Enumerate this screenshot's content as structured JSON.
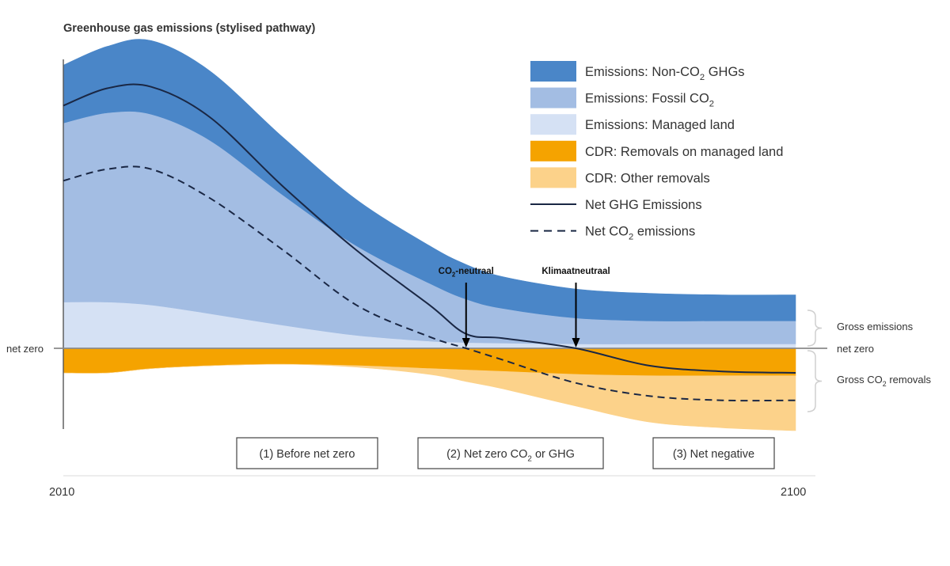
{
  "chart_data": {
    "type": "area",
    "title": "Greenhouse gas emissions (stylised pathway)",
    "x_start_label": "2010",
    "x_end_label": "2100",
    "zero_label": "net zero",
    "zero_label_right": "net zero",
    "colors": {
      "non_co2": "#4a86c8",
      "fossil_co2": "#a3bde3",
      "managed_land": "#d5e1f4",
      "cdr_managed": "#f5a300",
      "cdr_other": "#fcd28a",
      "net_line": "#1a2744",
      "axis": "#555555",
      "zero_line": "#8a8a8a",
      "text": "#333333"
    },
    "x": [
      0,
      0.06,
      0.12,
      0.2,
      0.3,
      0.4,
      0.5,
      0.55,
      0.6,
      0.7,
      0.8,
      0.9,
      1.0
    ],
    "series": [
      {
        "name": "Emissions: Managed land",
        "key": "managed_land",
        "values": [
          0.16,
          0.16,
          0.15,
          0.12,
          0.08,
          0.045,
          0.025,
          0.02,
          0.018,
          0.015,
          0.015,
          0.015,
          0.015
        ]
      },
      {
        "name": "Emissions: Fossil CO2",
        "key": "fossil_co2",
        "values": [
          0.62,
          0.655,
          0.66,
          0.6,
          0.45,
          0.31,
          0.2,
          0.15,
          0.12,
          0.09,
          0.08,
          0.08,
          0.08
        ]
      },
      {
        "name": "Emissions: Non-CO2 GHGs",
        "key": "non_co2",
        "values": [
          0.2,
          0.23,
          0.255,
          0.24,
          0.2,
          0.16,
          0.13,
          0.12,
          0.11,
          0.1,
          0.095,
          0.09,
          0.09
        ]
      },
      {
        "name": "CDR: Removals on managed land",
        "key": "cdr_managed",
        "values": [
          -0.085,
          -0.085,
          -0.07,
          -0.06,
          -0.055,
          -0.06,
          -0.07,
          -0.075,
          -0.08,
          -0.09,
          -0.095,
          -0.095,
          -0.095
        ]
      },
      {
        "name": "CDR: Other removals",
        "key": "cdr_other",
        "values": [
          0,
          0,
          0,
          0,
          0,
          -0.005,
          -0.02,
          -0.04,
          -0.06,
          -0.11,
          -0.16,
          -0.18,
          -0.19
        ]
      }
    ],
    "lines": [
      {
        "name": "Net GHG Emissions",
        "style": "solid",
        "values": [
          0.84,
          0.9,
          0.905,
          0.8,
          0.56,
          0.34,
          0.15,
          0.05,
          0.035,
          0.0,
          -0.06,
          -0.08,
          -0.085
        ]
      },
      {
        "name": "Net CO2 emissions",
        "style": "dashed",
        "values": [
          0.58,
          0.62,
          0.62,
          0.52,
          0.34,
          0.15,
          0.04,
          0.0,
          -0.04,
          -0.12,
          -0.165,
          -0.18,
          -0.18
        ]
      }
    ],
    "ylim": [
      -0.27,
      1.0
    ],
    "legend": {
      "position": "top-right",
      "items": [
        {
          "key": "non_co2",
          "kind": "patch",
          "pre": "Emissions: Non-CO",
          "sub": "2",
          "post": " GHGs"
        },
        {
          "key": "fossil_co2",
          "kind": "patch",
          "pre": "Emissions: Fossil CO",
          "sub": "2",
          "post": ""
        },
        {
          "key": "managed_land",
          "kind": "patch",
          "pre": "Emissions: Managed land",
          "sub": "",
          "post": ""
        },
        {
          "key": "cdr_managed",
          "kind": "patch",
          "pre": "CDR: Removals on managed land",
          "sub": "",
          "post": ""
        },
        {
          "key": "cdr_other",
          "kind": "patch",
          "pre": "CDR: Other removals",
          "sub": "",
          "post": ""
        },
        {
          "key": "net_line",
          "kind": "solid",
          "pre": "Net GHG Emissions",
          "sub": "",
          "post": ""
        },
        {
          "key": "net_line",
          "kind": "dashed",
          "pre": "Net CO",
          "sub": "2",
          "post": " emissions"
        }
      ]
    },
    "annotations": [
      {
        "x": 0.55,
        "pre": "CO",
        "sub": "2",
        "post": "-neutraal"
      },
      {
        "x": 0.7,
        "pre": "Klimaatneutraal",
        "sub": "",
        "post": ""
      }
    ],
    "braces": {
      "gross_emissions": {
        "pre": "Gross emissions",
        "sub": "",
        "post": ""
      },
      "gross_removals": {
        "pre": "Gross CO",
        "sub": "2",
        "post": " removals"
      }
    },
    "phases": [
      {
        "pre": "(1) Before net zero",
        "sub": "",
        "post": ""
      },
      {
        "pre": "(2) Net zero CO",
        "sub": "2",
        "post": " or GHG"
      },
      {
        "pre": "(3) Net negative",
        "sub": "",
        "post": ""
      }
    ]
  }
}
